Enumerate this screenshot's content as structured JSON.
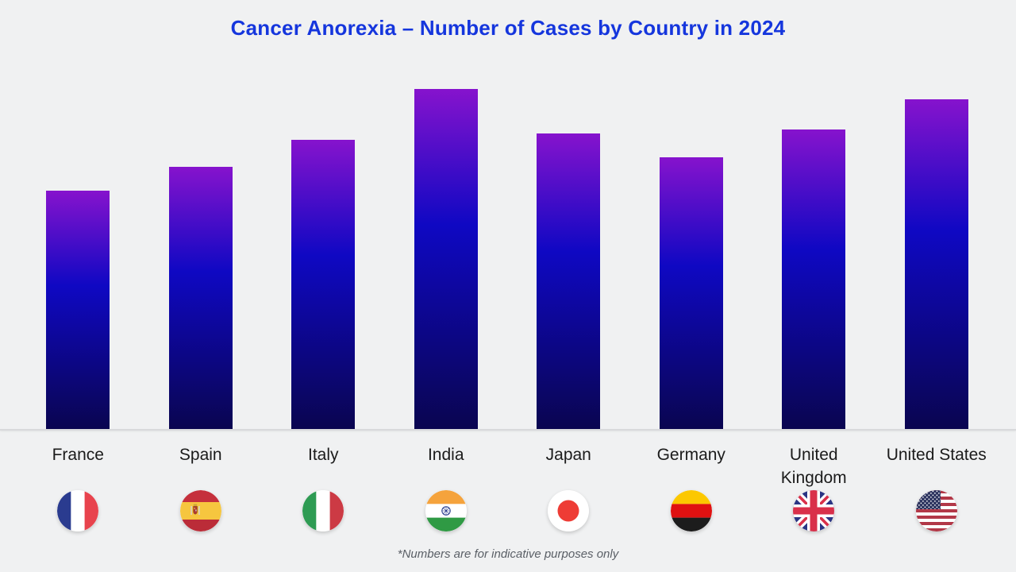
{
  "title": "Cancer Anorexia – Number of Cases by Country in 2024",
  "footnote": "*Numbers are for indicative purposes only",
  "colors": {
    "background": "#f0f1f2",
    "title": "#1536dd",
    "bar_top": "#8613cd",
    "bar_mid": "#0f08c3",
    "bar_bottom": "#0a0550",
    "baseline": "#d8d9db",
    "label_text": "#1b1b1b",
    "footnote_text": "#5a5f66"
  },
  "chart_data": {
    "type": "bar",
    "title": "Cancer Anorexia – Number of Cases by Country in 2024",
    "categories": [
      "France",
      "Spain",
      "Italy",
      "India",
      "Japan",
      "Germany",
      "United Kingdom",
      "United States"
    ],
    "values": [
      70,
      77,
      85,
      100,
      87,
      80,
      88,
      97
    ],
    "value_scale": "relative units estimated from bar heights (tallest bar = 100); no numeric y-axis is shown",
    "xlabel": "",
    "ylabel": "",
    "ylim": [
      0,
      100
    ],
    "grid": false,
    "legend": false,
    "bar_gradient": [
      "#8613cd",
      "#0f08c3",
      "#0a0550"
    ],
    "annotations": [
      "*Numbers are for indicative purposes only"
    ]
  },
  "flags": [
    {
      "country": "France",
      "icon": "france-flag-icon"
    },
    {
      "country": "Spain",
      "icon": "spain-flag-icon"
    },
    {
      "country": "Italy",
      "icon": "italy-flag-icon"
    },
    {
      "country": "India",
      "icon": "india-flag-icon"
    },
    {
      "country": "Japan",
      "icon": "japan-flag-icon"
    },
    {
      "country": "Germany",
      "icon": "germany-flag-icon"
    },
    {
      "country": "United Kingdom",
      "icon": "uk-flag-icon"
    },
    {
      "country": "United States",
      "icon": "us-flag-icon"
    }
  ]
}
